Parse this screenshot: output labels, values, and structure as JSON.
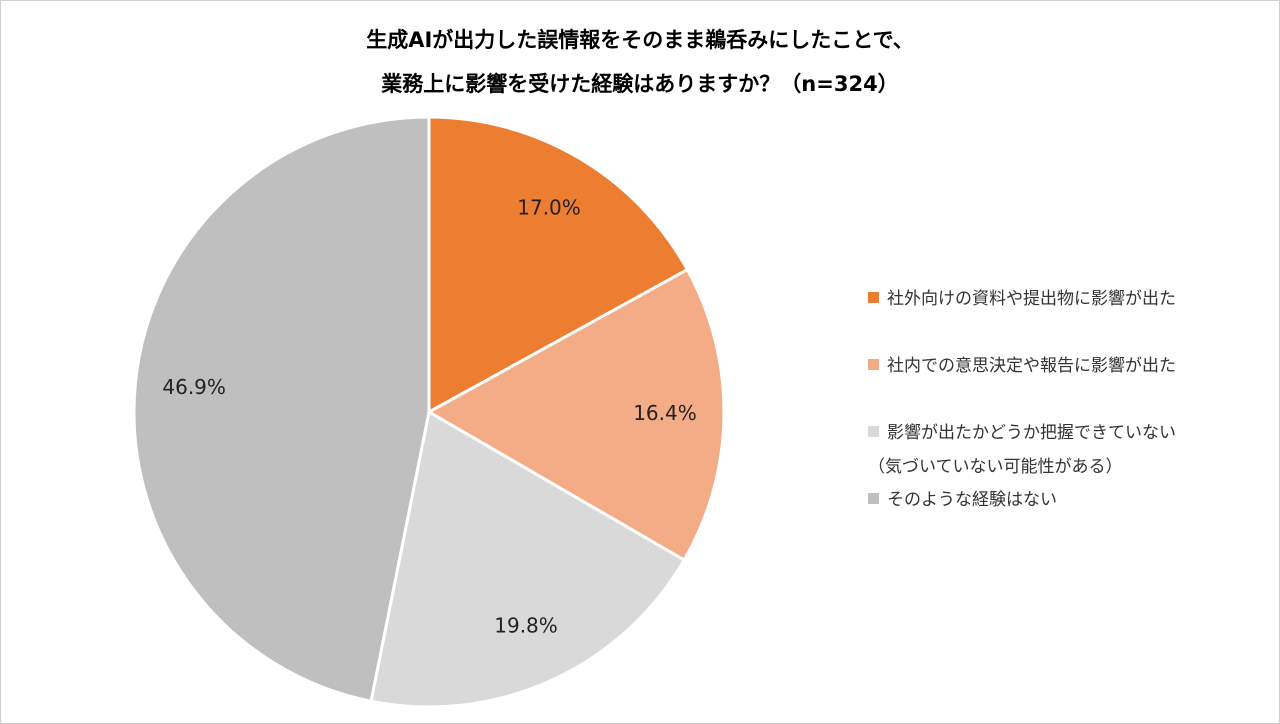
{
  "chart_data": {
    "type": "pie",
    "title": "生成AIが出力した誤情報をそのまま鵜呑みにしたことで、\n業務上に影響を受けた経験はありますか？（n=324）",
    "categories": [
      "社外向けの資料や提出物に影響が出た",
      "社内での意思決定や報告に影響が出た",
      "影響が出たかどうか把握できていない\n（気づいていない可能性がある）",
      "そのような経験はない"
    ],
    "values": [
      17.0,
      16.4,
      19.8,
      46.9
    ],
    "value_labels": [
      "17.0%",
      "16.4%",
      "19.8%",
      "46.9%"
    ],
    "colors": [
      "#ED7D31",
      "#F4AC86",
      "#D9D9D9",
      "#BFBFBF"
    ],
    "legend": "right"
  }
}
